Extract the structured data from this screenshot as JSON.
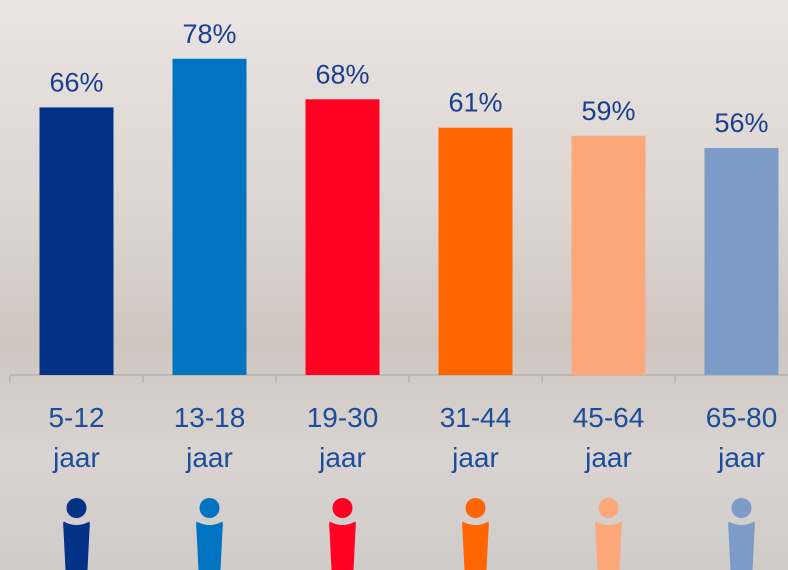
{
  "chart_data": {
    "type": "bar",
    "categories": [
      "5-12 jaar",
      "13-18 jaar",
      "19-30 jaar",
      "31-44 jaar",
      "45-64 jaar",
      "65-80 jaar"
    ],
    "values": [
      66,
      78,
      68,
      61,
      59,
      56
    ],
    "value_labels": [
      "66%",
      "78%",
      "68%",
      "61%",
      "59%",
      "56%"
    ],
    "colors": [
      "#033287",
      "#0174c1",
      "#fe0123",
      "#fe6602",
      "#fda87a",
      "#7d9bc7"
    ],
    "ylim": [
      0,
      92
    ]
  }
}
